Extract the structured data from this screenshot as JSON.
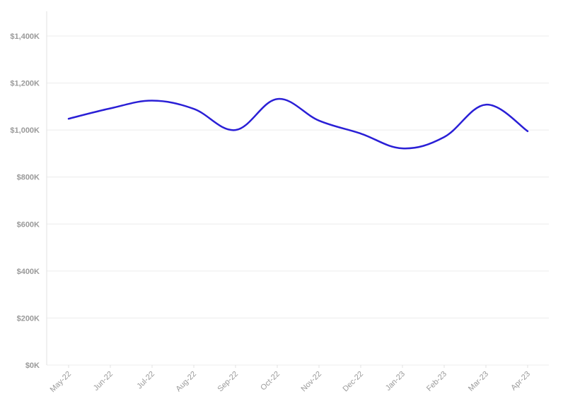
{
  "chart_data": {
    "type": "line",
    "categories": [
      "May-22",
      "Jun-22",
      "Jul-22",
      "Aug-22",
      "Sep-22",
      "Oct-22",
      "Nov-22",
      "Dec-22",
      "Jan-23",
      "Feb-23",
      "Mar-23",
      "Apr-23"
    ],
    "series": [
      {
        "values": [
          1048,
          1092,
          1125,
          1090,
          1000,
          1132,
          1040,
          985,
          922,
          970,
          1108,
          995
        ],
        "color": "#2a1fd6"
      }
    ],
    "y_ticks": [
      0,
      200,
      400,
      600,
      800,
      1000,
      1200,
      1400
    ],
    "y_tick_labels": [
      "$0K",
      "$200K",
      "$400K",
      "$600K",
      "$800K",
      "$1,000K",
      "$1,200K",
      "$1,400K"
    ],
    "ylim": [
      0,
      1400
    ],
    "y_unit": "thousands of dollars",
    "grid": true,
    "smooth": true
  }
}
